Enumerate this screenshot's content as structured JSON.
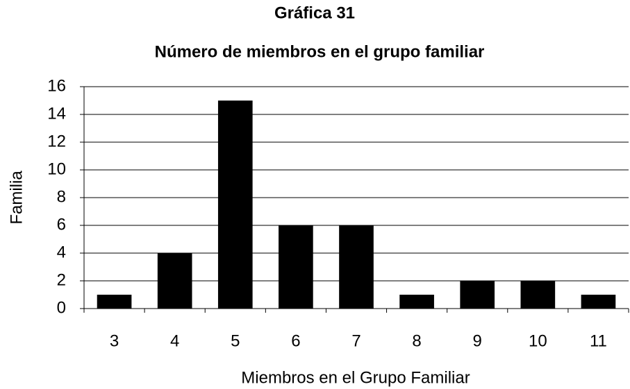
{
  "chart_data": {
    "type": "bar",
    "title": "Gráfica 31",
    "subtitle": "Número de miembros en el grupo familiar",
    "x_label": "Miembros en el Grupo Familiar",
    "y_label": "Familia",
    "categories": [
      "3",
      "4",
      "5",
      "6",
      "7",
      "8",
      "9",
      "10",
      "11"
    ],
    "values": [
      1,
      4,
      15,
      6,
      6,
      1,
      2,
      2,
      1
    ],
    "color": "#000000",
    "ylim": [
      0,
      16
    ],
    "yticks": [
      0,
      2,
      4,
      6,
      8,
      10,
      12,
      14,
      16
    ],
    "grid": true
  }
}
